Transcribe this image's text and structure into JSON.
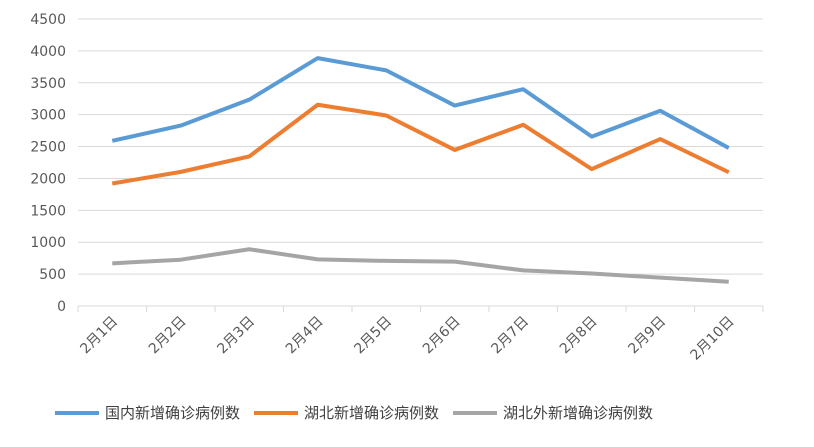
{
  "chart_data": {
    "type": "line",
    "categories": [
      "2月1日",
      "2月2日",
      "2月3日",
      "2月4日",
      "2月5日",
      "2月6日",
      "2月7日",
      "2月8日",
      "2月9日",
      "2月10日"
    ],
    "ylim": [
      0,
      4500
    ],
    "yticks": [
      0,
      500,
      1000,
      1500,
      2000,
      2500,
      3000,
      3500,
      4000,
      4500
    ],
    "grid": true,
    "legend": "bottom",
    "series": [
      {
        "name": "国内新增确诊病例数",
        "color": "#5b9bd5",
        "values": [
          2590,
          2829,
          3235,
          3887,
          3694,
          3143,
          3399,
          2656,
          3062,
          2478
        ]
      },
      {
        "name": "湖北新增确诊病例数",
        "color": "#ed7d31",
        "values": [
          1921,
          2103,
          2345,
          3156,
          2987,
          2447,
          2841,
          2147,
          2618,
          2097
        ]
      },
      {
        "name": "湖北外新增确诊病例数",
        "color": "#a5a5a5",
        "values": [
          669,
          726,
          890,
          731,
          707,
          696,
          558,
          509,
          444,
          381
        ]
      }
    ]
  }
}
